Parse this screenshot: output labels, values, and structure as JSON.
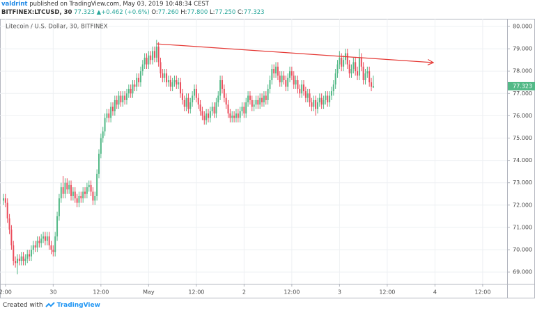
{
  "header": {
    "author": "valdrint",
    "published": "published on TradingView.com, May 03, 2019 10:48:34 CEST",
    "symbol": "BITFINEX:LTCUSD, 30",
    "last": "77.323",
    "arrow": "▲",
    "change": "+0.462 (+0.6%)",
    "o_label": "O:",
    "o": "77.260",
    "h_label": "H:",
    "h": "77.800",
    "l_label": "L:",
    "l": "77.250",
    "c_label": "C:",
    "c": "77.323"
  },
  "footer": {
    "created": "Created with",
    "brand": "TradingView"
  },
  "chart_data": {
    "type": "candlestick",
    "title": "Litecoin / U.S. Dollar, 30, BITFINEX",
    "up_color": "#53b987",
    "down_color": "#eb4d5c",
    "grid": true,
    "xlim": [
      -1.75,
      253.3
    ],
    "xticks": [
      {
        "value": 1,
        "label": "2:00"
      },
      {
        "value": 25,
        "label": "30"
      },
      {
        "value": 49,
        "label": "12:00"
      },
      {
        "value": 73,
        "label": "May"
      },
      {
        "value": 97,
        "label": "12:00"
      },
      {
        "value": 121,
        "label": "2"
      },
      {
        "value": 145,
        "label": "12:00"
      },
      {
        "value": 169,
        "label": "3"
      },
      {
        "value": 193,
        "label": "12:00"
      },
      {
        "value": 217,
        "label": "4"
      },
      {
        "value": 241,
        "label": "12:00"
      }
    ],
    "ylim": [
      68.474,
      80.343
    ],
    "yticks": [
      {
        "value": 69,
        "label": "69.000"
      },
      {
        "value": 70,
        "label": "70.000"
      },
      {
        "value": 71,
        "label": "71.000"
      },
      {
        "value": 72,
        "label": "72.000"
      },
      {
        "value": 73,
        "label": "73.000"
      },
      {
        "value": 74,
        "label": "74.000"
      },
      {
        "value": 75,
        "label": "75.000"
      },
      {
        "value": 76,
        "label": "76.000"
      },
      {
        "value": 77,
        "label": "77.000"
      },
      {
        "value": 78,
        "label": "78.000"
      },
      {
        "value": 79,
        "label": "79.000"
      },
      {
        "value": 80,
        "label": "80.000"
      }
    ],
    "trendline": {
      "x": [
        77,
        216.2
      ],
      "y": [
        79.22,
        78.38
      ],
      "color": "#e53935"
    },
    "open": [
      72.2,
      72.3,
      72.1,
      71.4,
      70.9,
      70.2,
      69.5,
      69.4,
      69.6,
      69.5,
      69.7,
      69.5,
      69.6,
      69.8,
      69.7,
      70.0,
      70.2,
      70.1,
      70.4,
      70.3,
      70.5,
      70.6,
      70.4,
      70.6,
      70.2,
      70.0,
      69.9,
      70.6,
      71.5,
      72.3,
      72.8,
      72.5,
      73.0,
      72.7,
      72.9,
      72.4,
      72.6,
      72.3,
      72.1,
      72.4,
      72.3,
      72.6,
      72.5,
      72.8,
      72.9,
      72.6,
      72.2,
      72.4,
      73.4,
      74.3,
      75.0,
      75.3,
      75.9,
      76.1,
      75.9,
      76.4,
      76.2,
      76.7,
      76.5,
      76.9,
      76.6,
      76.9,
      76.7,
      77.0,
      77.2,
      77.0,
      77.4,
      77.3,
      77.7,
      77.5,
      78.0,
      78.3,
      78.6,
      78.3,
      78.7,
      78.5,
      78.9,
      78.6,
      79.1,
      78.4,
      77.9,
      77.7,
      77.9,
      77.5,
      77.6,
      77.3,
      77.5,
      77.6,
      77.4,
      77.5,
      77.0,
      76.7,
      76.4,
      76.8,
      76.3,
      76.6,
      76.9,
      77.2,
      76.8,
      76.5,
      76.2,
      76.0,
      75.8,
      76.1,
      75.9,
      76.2,
      76.4,
      76.1,
      76.6,
      76.9,
      77.6,
      77.2,
      76.8,
      76.5,
      76.1,
      75.9,
      76.0,
      75.9,
      76.1,
      75.9,
      76.2,
      76.4,
      76.1,
      76.6,
      76.9,
      76.7,
      76.4,
      76.5,
      76.7,
      76.5,
      76.8,
      76.6,
      76.9,
      76.7,
      77.2,
      77.6,
      78.1,
      77.9,
      78.2,
      77.8,
      77.5,
      77.8,
      77.6,
      77.3,
      77.7,
      78.0,
      77.8,
      77.4,
      77.6,
      77.2,
      77.0,
      77.4,
      77.1,
      76.8,
      77.0,
      76.6,
      76.4,
      76.7,
      76.3,
      76.6,
      76.8,
      76.5,
      76.7,
      76.9,
      76.6,
      76.9,
      77.1,
      77.4,
      77.9,
      78.3,
      78.6,
      78.2,
      78.5,
      78.8,
      78.3,
      77.9,
      78.1,
      78.4,
      78.0,
      77.8,
      78.6,
      78.2,
      77.6,
      77.9,
      78.0,
      77.5,
      77.26
    ],
    "high": [
      72.5,
      72.5,
      72.3,
      71.6,
      71.1,
      70.4,
      69.7,
      69.8,
      69.8,
      69.9,
      69.9,
      69.8,
      70.0,
      70.0,
      70.2,
      70.4,
      70.4,
      70.6,
      70.6,
      70.7,
      70.8,
      70.8,
      70.8,
      70.8,
      70.4,
      70.2,
      70.8,
      71.7,
      72.5,
      73.0,
      73.3,
      73.2,
      73.2,
      73.1,
      73.1,
      72.8,
      72.8,
      72.5,
      72.6,
      72.6,
      72.8,
      72.8,
      73.0,
      73.1,
      73.1,
      72.8,
      72.6,
      73.6,
      74.5,
      75.2,
      75.5,
      76.1,
      76.3,
      76.3,
      76.6,
      76.6,
      76.9,
      76.9,
      77.1,
      77.1,
      77.1,
      77.1,
      77.2,
      77.4,
      77.4,
      77.6,
      77.6,
      77.9,
      77.9,
      78.2,
      78.5,
      78.8,
      78.8,
      78.9,
      78.9,
      79.1,
      79.1,
      79.4,
      79.3,
      78.6,
      78.1,
      78.1,
      78.1,
      77.8,
      77.8,
      77.7,
      77.8,
      77.8,
      77.7,
      77.7,
      77.2,
      76.9,
      77.0,
      77.0,
      76.8,
      77.1,
      77.4,
      77.4,
      77.0,
      76.7,
      76.4,
      76.2,
      76.3,
      76.3,
      76.4,
      76.6,
      76.6,
      76.8,
      77.1,
      77.8,
      77.8,
      77.4,
      77.0,
      76.7,
      76.3,
      76.2,
      76.2,
      76.3,
      76.3,
      76.4,
      76.6,
      76.6,
      76.8,
      77.1,
      77.1,
      76.9,
      76.7,
      76.9,
      76.9,
      77.0,
      77.0,
      77.1,
      77.1,
      77.4,
      77.8,
      78.3,
      78.3,
      78.4,
      78.4,
      78.0,
      78.0,
      78.0,
      77.8,
      77.9,
      78.2,
      78.2,
      78.0,
      77.8,
      77.8,
      77.4,
      77.6,
      77.6,
      77.3,
      77.2,
      77.2,
      76.8,
      76.9,
      76.9,
      76.8,
      77.0,
      77.0,
      76.9,
      77.1,
      77.1,
      77.1,
      77.3,
      77.6,
      78.1,
      78.5,
      78.9,
      78.8,
      78.7,
      79.0,
      79.0,
      78.5,
      78.3,
      78.6,
      78.6,
      78.2,
      79.0,
      78.8,
      78.4,
      78.1,
      78.2,
      78.2,
      77.7,
      77.8
    ],
    "low": [
      72.0,
      71.9,
      71.2,
      70.7,
      70.0,
      69.3,
      69.2,
      68.9,
      69.3,
      69.3,
      69.3,
      69.3,
      69.4,
      69.5,
      69.5,
      69.8,
      69.9,
      69.9,
      70.1,
      70.1,
      70.3,
      70.2,
      70.2,
      70.0,
      69.8,
      69.7,
      69.7,
      70.4,
      71.3,
      72.1,
      72.3,
      72.3,
      72.5,
      72.5,
      72.2,
      72.2,
      72.1,
      71.9,
      71.9,
      72.1,
      72.1,
      72.3,
      72.3,
      72.6,
      72.4,
      72.0,
      72.0,
      72.2,
      73.2,
      74.1,
      74.8,
      75.1,
      75.7,
      75.7,
      75.7,
      76.0,
      76.0,
      76.3,
      76.3,
      76.4,
      76.4,
      76.5,
      76.5,
      76.8,
      76.8,
      76.8,
      77.1,
      77.1,
      77.3,
      77.3,
      77.8,
      78.1,
      78.1,
      78.1,
      78.3,
      78.3,
      78.4,
      78.4,
      78.2,
      77.7,
      77.5,
      77.5,
      77.3,
      77.3,
      77.1,
      77.1,
      77.3,
      77.2,
      77.2,
      76.8,
      76.5,
      76.2,
      76.2,
      76.1,
      76.1,
      76.4,
      76.7,
      76.6,
      76.3,
      76.0,
      75.8,
      75.6,
      75.6,
      75.7,
      75.7,
      76.0,
      75.9,
      75.9,
      76.4,
      76.7,
      77.0,
      76.6,
      76.3,
      75.9,
      75.7,
      75.7,
      75.7,
      75.7,
      75.7,
      75.7,
      76.0,
      75.9,
      75.9,
      76.4,
      76.5,
      76.2,
      76.2,
      76.3,
      76.3,
      76.3,
      76.4,
      76.4,
      76.5,
      76.5,
      77.0,
      77.4,
      77.7,
      77.7,
      77.6,
      77.3,
      77.3,
      77.4,
      77.1,
      77.1,
      77.5,
      77.6,
      77.2,
      77.2,
      77.0,
      76.8,
      76.8,
      76.9,
      76.6,
      76.6,
      76.4,
      76.2,
      76.2,
      76.0,
      76.1,
      76.4,
      76.3,
      76.3,
      76.5,
      76.4,
      76.4,
      76.7,
      76.9,
      77.2,
      77.7,
      78.1,
      78.0,
      78.0,
      78.3,
      78.1,
      77.7,
      77.7,
      77.9,
      77.8,
      77.6,
      77.6,
      78.0,
      77.4,
      77.4,
      77.7,
      77.3,
      77.1,
      77.25
    ],
    "close": [
      72.3,
      72.1,
      71.4,
      70.9,
      70.2,
      69.5,
      69.4,
      69.6,
      69.5,
      69.7,
      69.5,
      69.6,
      69.8,
      69.7,
      70.0,
      70.2,
      70.1,
      70.4,
      70.3,
      70.5,
      70.6,
      70.4,
      70.6,
      70.2,
      70.0,
      69.9,
      70.6,
      71.5,
      72.3,
      72.8,
      72.5,
      73.0,
      72.7,
      72.9,
      72.4,
      72.6,
      72.3,
      72.1,
      72.4,
      72.3,
      72.6,
      72.5,
      72.8,
      72.9,
      72.6,
      72.2,
      72.4,
      73.4,
      74.3,
      75.0,
      75.3,
      75.9,
      76.1,
      75.9,
      76.4,
      76.2,
      76.7,
      76.5,
      76.9,
      76.6,
      76.9,
      76.7,
      77.0,
      77.2,
      77.0,
      77.4,
      77.3,
      77.7,
      77.5,
      78.0,
      78.3,
      78.6,
      78.3,
      78.7,
      78.5,
      78.9,
      78.6,
      79.1,
      78.4,
      77.9,
      77.7,
      77.9,
      77.5,
      77.6,
      77.3,
      77.5,
      77.6,
      77.4,
      77.5,
      77.0,
      76.7,
      76.4,
      76.8,
      76.3,
      76.6,
      76.9,
      77.2,
      76.8,
      76.5,
      76.2,
      76.0,
      75.8,
      76.1,
      75.9,
      76.2,
      76.4,
      76.1,
      76.6,
      76.9,
      77.6,
      77.2,
      76.8,
      76.5,
      76.1,
      75.9,
      76.0,
      75.9,
      76.1,
      75.9,
      76.2,
      76.4,
      76.1,
      76.6,
      76.9,
      76.7,
      76.4,
      76.5,
      76.7,
      76.5,
      76.8,
      76.6,
      76.9,
      76.7,
      77.2,
      77.6,
      78.1,
      77.9,
      78.2,
      77.8,
      77.5,
      77.8,
      77.6,
      77.3,
      77.7,
      78.0,
      77.8,
      77.4,
      77.6,
      77.2,
      77.0,
      77.4,
      77.1,
      76.8,
      77.0,
      76.6,
      76.4,
      76.7,
      76.3,
      76.6,
      76.8,
      76.5,
      76.7,
      76.9,
      76.6,
      76.9,
      77.1,
      77.4,
      77.9,
      78.3,
      78.6,
      78.2,
      78.5,
      78.8,
      78.3,
      77.9,
      78.1,
      78.4,
      78.0,
      77.8,
      78.6,
      78.2,
      77.6,
      77.9,
      78.0,
      77.5,
      77.3,
      77.323
    ]
  }
}
